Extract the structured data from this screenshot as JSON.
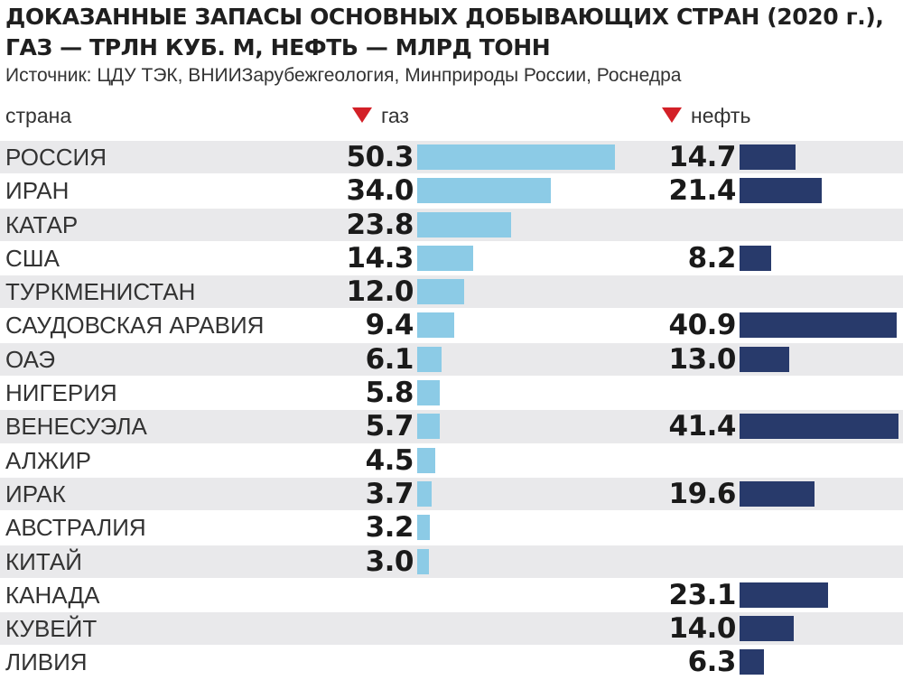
{
  "title_line1": "ДОКАЗАННЫЕ ЗАПАСЫ ОСНОВНЫХ ДОБЫВАЮЩИХ СТРАН (2020 г.),",
  "title_line2": "ГАЗ — ТРЛН КУБ. М, НЕФТЬ — МЛРД ТОНН",
  "source": "Источник: ЦДУ ТЭК, ВНИИЗарубежгеология, Минприроды России, Роснедра",
  "headers": {
    "country": "страна",
    "gas": "газ",
    "oil": "нефть"
  },
  "colors": {
    "gas": "#8ccbe6",
    "oil": "#283a6b",
    "accent_triangle": "#d32027",
    "row_shade": "#e9e9eb"
  },
  "chart_data": {
    "type": "bar",
    "title": "ДОКАЗАННЫЕ ЗАПАСЫ ОСНОВНЫХ ДОБЫВАЮЩИХ СТРАН (2020 г.), ГАЗ — ТРЛН КУБ. М, НЕФТЬ — МЛРД ТОНН",
    "orientation": "horizontal",
    "categories": [
      "РОССИЯ",
      "ИРАН",
      "КАТАР",
      "США",
      "ТУРКМЕНИСТАН",
      "САУДОВСКАЯ АРАВИЯ",
      "ОАЭ",
      "НИГЕРИЯ",
      "ВЕНЕСУЭЛА",
      "АЛЖИР",
      "ИРАК",
      "АВСТРАЛИЯ",
      "КИТАЙ",
      "КАНАДА",
      "КУВЕЙТ",
      "ЛИВИЯ"
    ],
    "series": [
      {
        "name": "газ",
        "values": [
          "50.3",
          "34.0",
          "23.8",
          "14.3",
          "12.0",
          "9.4",
          "6.1",
          "5.8",
          "5.7",
          "4.5",
          "3.7",
          "3.2",
          "3.0",
          null,
          null,
          null
        ]
      },
      {
        "name": "нефть",
        "values": [
          "14.7",
          "21.4",
          null,
          "8.2",
          null,
          "40.9",
          "13.0",
          null,
          "41.4",
          null,
          "19.6",
          null,
          null,
          "23.1",
          "14.0",
          "6.3"
        ]
      }
    ],
    "grid": false,
    "legend": "top"
  }
}
